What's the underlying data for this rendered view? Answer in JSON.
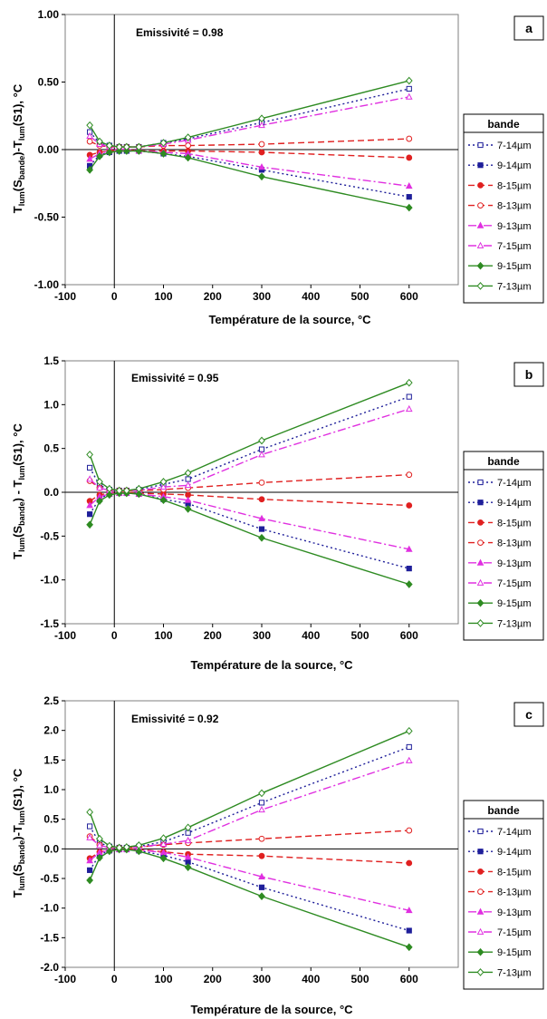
{
  "chart_data": [
    {
      "type": "line",
      "panel_label": "a",
      "annotation": "Emissivité = 0.98",
      "xlabel": "Température de la source, °C",
      "ylabel_parts": [
        "T",
        "lum",
        "(S",
        "bande",
        ")-T",
        "lum",
        "(S1), °C"
      ],
      "xlim": [
        -100,
        700
      ],
      "ylim": [
        -1.0,
        1.0
      ],
      "xticks": [
        "-100",
        "0",
        "100",
        "200",
        "300",
        "400",
        "500",
        "600"
      ],
      "yticks": [
        "1.00",
        "0.50",
        "0.00",
        "-0.50",
        "-1.00"
      ],
      "legend_title": "bande",
      "legend_placement": "right",
      "x": [
        -50,
        -30,
        -10,
        10,
        25,
        50,
        100,
        150,
        300,
        600
      ],
      "series": [
        {
          "name": "7-14µm",
          "values": [
            0.13,
            0.05,
            0.03,
            0.02,
            0.02,
            0.02,
            0.05,
            0.08,
            0.2,
            0.45
          ]
        },
        {
          "name": "9-14µm",
          "values": [
            -0.12,
            -0.04,
            -0.02,
            -0.01,
            -0.01,
            -0.01,
            -0.03,
            -0.05,
            -0.15,
            -0.35
          ]
        },
        {
          "name": "8-15µm",
          "values": [
            -0.04,
            -0.02,
            -0.01,
            0.0,
            0.0,
            -0.01,
            -0.01,
            -0.01,
            -0.02,
            -0.06
          ]
        },
        {
          "name": "8-13µm",
          "values": [
            0.06,
            0.03,
            0.02,
            0.02,
            0.02,
            0.02,
            0.03,
            0.03,
            0.04,
            0.08
          ]
        },
        {
          "name": "9-13µm",
          "values": [
            -0.07,
            -0.03,
            -0.01,
            0.0,
            0.0,
            -0.01,
            -0.02,
            -0.03,
            -0.13,
            -0.27
          ]
        },
        {
          "name": "7-15µm",
          "values": [
            0.1,
            0.04,
            0.02,
            0.02,
            0.02,
            0.02,
            0.04,
            0.07,
            0.18,
            0.39
          ]
        },
        {
          "name": "9-15µm",
          "values": [
            -0.15,
            -0.05,
            -0.02,
            -0.01,
            -0.01,
            -0.01,
            -0.03,
            -0.06,
            -0.2,
            -0.43
          ]
        },
        {
          "name": "7-13µm",
          "values": [
            0.18,
            0.06,
            0.03,
            0.02,
            0.02,
            0.02,
            0.05,
            0.09,
            0.23,
            0.51
          ]
        }
      ]
    },
    {
      "type": "line",
      "panel_label": "b",
      "annotation": "Emissivité = 0.95",
      "xlabel": "Température de la source, °C",
      "ylabel_parts": [
        "T",
        "lum",
        "(S",
        "bande",
        ") - T",
        "lum",
        "(S1), °C"
      ],
      "xlim": [
        -100,
        700
      ],
      "ylim": [
        -1.5,
        1.5
      ],
      "xticks": [
        "-100",
        "0",
        "100",
        "200",
        "300",
        "400",
        "500",
        "600"
      ],
      "yticks": [
        "1.5",
        "1.0",
        "0.5",
        "0.0",
        "-0.5",
        "-1.0",
        "-1.5"
      ],
      "legend_title": "bande",
      "legend_placement": "right",
      "x": [
        -50,
        -30,
        -10,
        10,
        25,
        50,
        100,
        150,
        300,
        600
      ],
      "series": [
        {
          "name": "7-14µm",
          "values": [
            0.28,
            0.08,
            0.03,
            0.02,
            0.02,
            0.03,
            0.09,
            0.15,
            0.49,
            1.09
          ]
        },
        {
          "name": "9-14µm",
          "values": [
            -0.25,
            -0.07,
            -0.02,
            -0.01,
            -0.01,
            -0.02,
            -0.08,
            -0.13,
            -0.42,
            -0.87
          ]
        },
        {
          "name": "8-15µm",
          "values": [
            -0.1,
            -0.03,
            -0.01,
            0.0,
            0.0,
            -0.01,
            -0.02,
            -0.03,
            -0.08,
            -0.15
          ]
        },
        {
          "name": "8-13µm",
          "values": [
            0.13,
            0.05,
            0.02,
            0.02,
            0.02,
            0.02,
            0.03,
            0.05,
            0.11,
            0.2
          ]
        },
        {
          "name": "9-13µm",
          "values": [
            -0.15,
            -0.05,
            -0.02,
            -0.01,
            -0.01,
            -0.02,
            -0.05,
            -0.09,
            -0.3,
            -0.65
          ]
        },
        {
          "name": "7-15µm",
          "values": [
            0.15,
            0.05,
            0.02,
            0.02,
            0.02,
            0.02,
            0.06,
            0.08,
            0.43,
            0.95
          ]
        },
        {
          "name": "9-15µm",
          "values": [
            -0.37,
            -0.1,
            -0.03,
            -0.01,
            -0.01,
            -0.02,
            -0.09,
            -0.19,
            -0.52,
            -1.05
          ]
        },
        {
          "name": "7-13µm",
          "values": [
            0.43,
            0.12,
            0.04,
            0.02,
            0.02,
            0.04,
            0.12,
            0.22,
            0.59,
            1.25
          ]
        }
      ]
    },
    {
      "type": "line",
      "panel_label": "c",
      "annotation": "Emissivité = 0.92",
      "xlabel": "Température de la source, °C",
      "ylabel_parts": [
        "T",
        "lum",
        "(S",
        "bande",
        ")-T",
        "lum",
        "(S1), °C"
      ],
      "xlim": [
        -100,
        700
      ],
      "ylim": [
        -2.0,
        2.5
      ],
      "xticks": [
        "-100",
        "0",
        "100",
        "200",
        "300",
        "400",
        "500",
        "600"
      ],
      "yticks": [
        "2.5",
        "2.0",
        "1.5",
        "1.0",
        "0.5",
        "0.0",
        "-0.5",
        "-1.0",
        "-1.5",
        "-2.0"
      ],
      "legend_title": "bande",
      "legend_placement": "right",
      "x": [
        -50,
        -30,
        -10,
        10,
        25,
        50,
        100,
        150,
        300,
        600
      ],
      "series": [
        {
          "name": "7-14µm",
          "values": [
            0.38,
            0.1,
            0.04,
            0.02,
            0.02,
            0.04,
            0.12,
            0.27,
            0.78,
            1.72
          ]
        },
        {
          "name": "9-14µm",
          "values": [
            -0.36,
            -0.1,
            -0.03,
            -0.01,
            -0.01,
            -0.03,
            -0.11,
            -0.22,
            -0.65,
            -1.38
          ]
        },
        {
          "name": "8-15µm",
          "values": [
            -0.16,
            -0.05,
            -0.02,
            0.0,
            0.0,
            -0.01,
            -0.05,
            -0.09,
            -0.12,
            -0.24
          ]
        },
        {
          "name": "8-13µm",
          "values": [
            0.21,
            0.07,
            0.03,
            0.02,
            0.02,
            0.03,
            0.07,
            0.1,
            0.17,
            0.31
          ]
        },
        {
          "name": "9-13µm",
          "values": [
            -0.2,
            -0.06,
            -0.02,
            -0.01,
            -0.01,
            -0.02,
            -0.06,
            -0.14,
            -0.47,
            -1.04
          ]
        },
        {
          "name": "7-15µm",
          "values": [
            0.19,
            0.06,
            0.02,
            0.02,
            0.02,
            0.03,
            0.08,
            0.14,
            0.66,
            1.49
          ]
        },
        {
          "name": "9-15µm",
          "values": [
            -0.53,
            -0.15,
            -0.04,
            -0.01,
            -0.01,
            -0.04,
            -0.16,
            -0.31,
            -0.8,
            -1.66
          ]
        },
        {
          "name": "7-13µm",
          "values": [
            0.62,
            0.17,
            0.05,
            0.02,
            0.03,
            0.06,
            0.18,
            0.36,
            0.94,
            1.99
          ]
        }
      ]
    }
  ],
  "series_styles": [
    {
      "color": "#1f1f9a",
      "dash": "2,3",
      "marker": "square",
      "filled": false
    },
    {
      "color": "#1f1f9a",
      "dash": "2,3",
      "marker": "square",
      "filled": true
    },
    {
      "color": "#e02020",
      "dash": "7,4",
      "marker": "circle",
      "filled": true
    },
    {
      "color": "#e02020",
      "dash": "7,4",
      "marker": "circle",
      "filled": false
    },
    {
      "color": "#e030e0",
      "dash": "9,3,2,3",
      "marker": "triangle",
      "filled": true
    },
    {
      "color": "#e030e0",
      "dash": "9,3,2,3",
      "marker": "triangle",
      "filled": false
    },
    {
      "color": "#2e8b22",
      "dash": "",
      "marker": "diamond",
      "filled": true
    },
    {
      "color": "#2e8b22",
      "dash": "",
      "marker": "diamond",
      "filled": false
    }
  ]
}
